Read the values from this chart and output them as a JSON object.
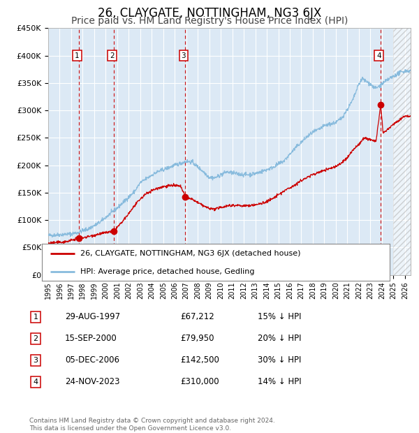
{
  "title": "26, CLAYGATE, NOTTINGHAM, NG3 6JX",
  "subtitle": "Price paid vs. HM Land Registry's House Price Index (HPI)",
  "title_fontsize": 12,
  "subtitle_fontsize": 10,
  "ylabel_ticks": [
    "£0",
    "£50K",
    "£100K",
    "£150K",
    "£200K",
    "£250K",
    "£300K",
    "£350K",
    "£400K",
    "£450K"
  ],
  "ytick_values": [
    0,
    50000,
    100000,
    150000,
    200000,
    250000,
    300000,
    350000,
    400000,
    450000
  ],
  "xlim_start": 1995.0,
  "xlim_end": 2026.5,
  "ylim_min": 0,
  "ylim_max": 450000,
  "background_color": "#dce9f5",
  "grid_color": "#ffffff",
  "hatch_region_start": 2025.0,
  "sales": [
    {
      "year": 1997.66,
      "price": 67212,
      "label": "1"
    },
    {
      "year": 2000.71,
      "price": 79950,
      "label": "2"
    },
    {
      "year": 2006.92,
      "price": 142500,
      "label": "3"
    },
    {
      "year": 2023.9,
      "price": 310000,
      "label": "4"
    }
  ],
  "sale_color": "#cc0000",
  "hpi_color": "#88bbdd",
  "legend_entries": [
    "26, CLAYGATE, NOTTINGHAM, NG3 6JX (detached house)",
    "HPI: Average price, detached house, Gedling"
  ],
  "table_rows": [
    {
      "num": "1",
      "date": "29-AUG-1997",
      "price": "£67,212",
      "hpi": "15% ↓ HPI"
    },
    {
      "num": "2",
      "date": "15-SEP-2000",
      "price": "£79,950",
      "hpi": "20% ↓ HPI"
    },
    {
      "num": "3",
      "date": "05-DEC-2006",
      "price": "£142,500",
      "hpi": "30% ↓ HPI"
    },
    {
      "num": "4",
      "date": "24-NOV-2023",
      "price": "£310,000",
      "hpi": "14% ↓ HPI"
    }
  ],
  "footer": "Contains HM Land Registry data © Crown copyright and database right 2024.\nThis data is licensed under the Open Government Licence v3.0.",
  "xtick_years": [
    1995,
    1996,
    1997,
    1998,
    1999,
    2000,
    2001,
    2002,
    2003,
    2004,
    2005,
    2006,
    2007,
    2008,
    2009,
    2010,
    2011,
    2012,
    2013,
    2014,
    2015,
    2016,
    2017,
    2018,
    2019,
    2020,
    2021,
    2022,
    2023,
    2024,
    2025,
    2026
  ]
}
